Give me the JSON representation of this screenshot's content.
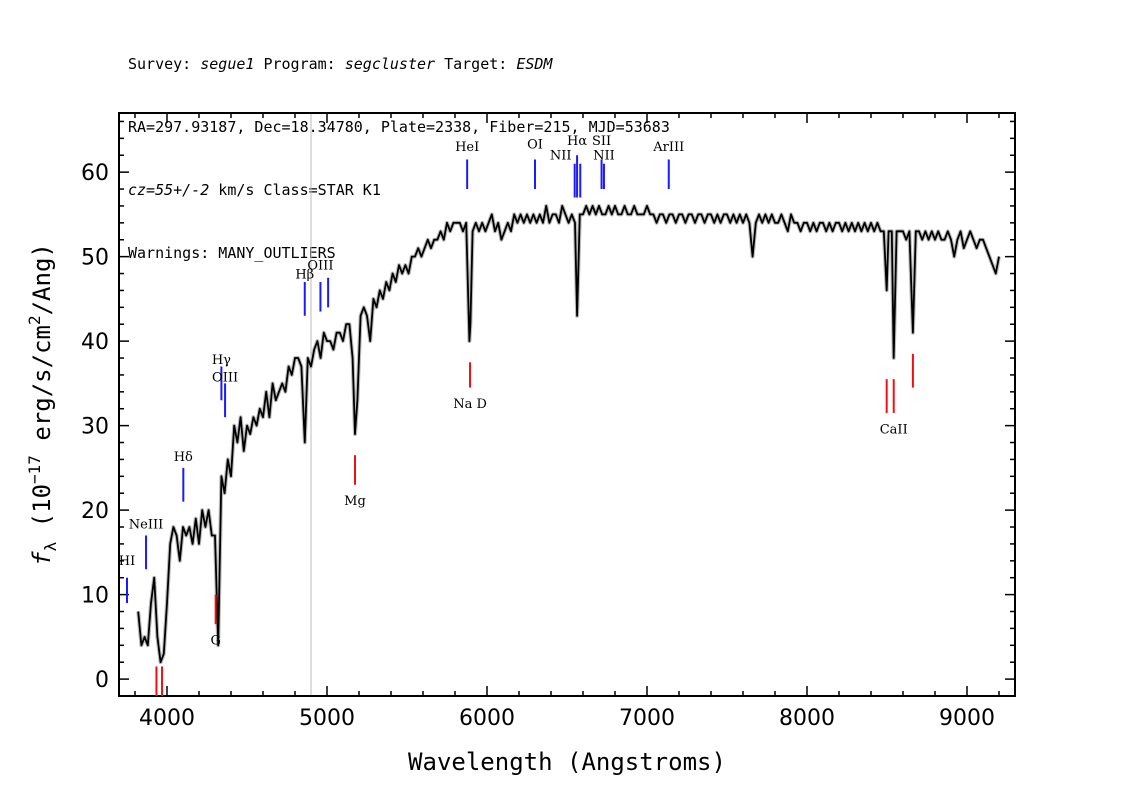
{
  "header": {
    "line1": {
      "survey_label": "Survey: ",
      "survey": "segue1",
      "program_label": " Program: ",
      "program": "segcluster",
      "target_label": " Target: ",
      "target": "ESDM"
    },
    "line2": "RA=297.93187, Dec=18.34780, Plate=2338, Fiber=215, MJD=53683",
    "line3": {
      "cz": "cz=55+/-2",
      "rest": " km/s Class=STAR K1"
    },
    "line4": "Warnings: MANY_OUTLIERS"
  },
  "chart_data": {
    "type": "line",
    "xlabel": "Wavelength (Angstroms)",
    "ylabel_prefix": "f",
    "ylabel_sub": "λ",
    "ylabel_main": " (10",
    "ylabel_exp": "−17",
    "ylabel_rest": " erg/s/cm",
    "ylabel_exp2": "2",
    "ylabel_end": "/Ang)",
    "xlim": [
      3700,
      9300
    ],
    "ylim": [
      -2,
      67
    ],
    "xticks": [
      4000,
      5000,
      6000,
      7000,
      8000,
      9000
    ],
    "yticks": [
      0,
      10,
      20,
      30,
      40,
      50,
      60
    ],
    "vline_x": 4900,
    "spectrum_color": "#000000",
    "error_color": "#bbbbbb",
    "spectrum_points": [
      [
        3820,
        8
      ],
      [
        3840,
        4
      ],
      [
        3860,
        5
      ],
      [
        3880,
        4
      ],
      [
        3900,
        9
      ],
      [
        3920,
        12
      ],
      [
        3940,
        5
      ],
      [
        3960,
        2
      ],
      [
        3980,
        3
      ],
      [
        4000,
        9
      ],
      [
        4020,
        16
      ],
      [
        4040,
        18
      ],
      [
        4060,
        17
      ],
      [
        4080,
        14
      ],
      [
        4100,
        18
      ],
      [
        4120,
        17
      ],
      [
        4140,
        18
      ],
      [
        4160,
        16
      ],
      [
        4180,
        19
      ],
      [
        4200,
        16
      ],
      [
        4220,
        20
      ],
      [
        4240,
        18
      ],
      [
        4260,
        20
      ],
      [
        4280,
        17
      ],
      [
        4300,
        17
      ],
      [
        4320,
        4
      ],
      [
        4340,
        24
      ],
      [
        4360,
        22
      ],
      [
        4380,
        26
      ],
      [
        4400,
        24
      ],
      [
        4420,
        30
      ],
      [
        4440,
        28
      ],
      [
        4460,
        31
      ],
      [
        4480,
        27
      ],
      [
        4500,
        30
      ],
      [
        4520,
        29
      ],
      [
        4540,
        31
      ],
      [
        4560,
        30
      ],
      [
        4580,
        32
      ],
      [
        4600,
        31
      ],
      [
        4620,
        34
      ],
      [
        4640,
        31
      ],
      [
        4660,
        35
      ],
      [
        4680,
        33
      ],
      [
        4700,
        34
      ],
      [
        4720,
        35
      ],
      [
        4740,
        34
      ],
      [
        4760,
        37
      ],
      [
        4780,
        36
      ],
      [
        4800,
        38
      ],
      [
        4820,
        38
      ],
      [
        4840,
        37
      ],
      [
        4861,
        28
      ],
      [
        4880,
        38
      ],
      [
        4900,
        37
      ],
      [
        4920,
        39
      ],
      [
        4940,
        40
      ],
      [
        4960,
        38
      ],
      [
        4980,
        41
      ],
      [
        5000,
        40
      ],
      [
        5020,
        40
      ],
      [
        5040,
        39
      ],
      [
        5060,
        41
      ],
      [
        5080,
        41
      ],
      [
        5100,
        40
      ],
      [
        5120,
        42
      ],
      [
        5140,
        42
      ],
      [
        5160,
        38
      ],
      [
        5175,
        29
      ],
      [
        5190,
        33
      ],
      [
        5210,
        43
      ],
      [
        5230,
        44
      ],
      [
        5250,
        43
      ],
      [
        5270,
        40
      ],
      [
        5290,
        45
      ],
      [
        5310,
        44
      ],
      [
        5330,
        46
      ],
      [
        5350,
        45
      ],
      [
        5370,
        47
      ],
      [
        5390,
        46
      ],
      [
        5410,
        48
      ],
      [
        5430,
        47
      ],
      [
        5450,
        49
      ],
      [
        5470,
        48
      ],
      [
        5490,
        49
      ],
      [
        5510,
        48
      ],
      [
        5530,
        50
      ],
      [
        5550,
        50
      ],
      [
        5570,
        51
      ],
      [
        5590,
        50
      ],
      [
        5610,
        51
      ],
      [
        5630,
        52
      ],
      [
        5650,
        51
      ],
      [
        5670,
        52
      ],
      [
        5690,
        52
      ],
      [
        5710,
        53
      ],
      [
        5730,
        52
      ],
      [
        5750,
        54
      ],
      [
        5770,
        53
      ],
      [
        5790,
        54
      ],
      [
        5810,
        54
      ],
      [
        5830,
        54
      ],
      [
        5850,
        53
      ],
      [
        5870,
        54
      ],
      [
        5890,
        40
      ],
      [
        5896,
        42
      ],
      [
        5910,
        53
      ],
      [
        5930,
        54
      ],
      [
        5950,
        53
      ],
      [
        5970,
        54
      ],
      [
        5990,
        53
      ],
      [
        6010,
        54
      ],
      [
        6030,
        55
      ],
      [
        6050,
        53
      ],
      [
        6070,
        54
      ],
      [
        6090,
        52
      ],
      [
        6110,
        53
      ],
      [
        6130,
        54
      ],
      [
        6150,
        53
      ],
      [
        6170,
        55
      ],
      [
        6190,
        54
      ],
      [
        6210,
        55
      ],
      [
        6230,
        54
      ],
      [
        6250,
        55
      ],
      [
        6270,
        54
      ],
      [
        6290,
        55
      ],
      [
        6310,
        54
      ],
      [
        6330,
        55
      ],
      [
        6350,
        54
      ],
      [
        6370,
        56
      ],
      [
        6390,
        54
      ],
      [
        6410,
        55
      ],
      [
        6430,
        55
      ],
      [
        6450,
        54
      ],
      [
        6470,
        56
      ],
      [
        6490,
        55
      ],
      [
        6510,
        54
      ],
      [
        6530,
        55
      ],
      [
        6550,
        54
      ],
      [
        6563,
        43
      ],
      [
        6580,
        55
      ],
      [
        6600,
        55
      ],
      [
        6620,
        56
      ],
      [
        6640,
        55
      ],
      [
        6660,
        56
      ],
      [
        6680,
        55
      ],
      [
        6700,
        56
      ],
      [
        6720,
        55
      ],
      [
        6740,
        55
      ],
      [
        6760,
        56
      ],
      [
        6780,
        55
      ],
      [
        6800,
        56
      ],
      [
        6820,
        55
      ],
      [
        6840,
        55
      ],
      [
        6860,
        56
      ],
      [
        6880,
        55
      ],
      [
        6900,
        55
      ],
      [
        6920,
        56
      ],
      [
        6940,
        55
      ],
      [
        6960,
        55
      ],
      [
        6980,
        55
      ],
      [
        7000,
        56
      ],
      [
        7020,
        55
      ],
      [
        7040,
        55
      ],
      [
        7060,
        54
      ],
      [
        7080,
        55
      ],
      [
        7100,
        55
      ],
      [
        7120,
        54
      ],
      [
        7140,
        55
      ],
      [
        7160,
        55
      ],
      [
        7180,
        54
      ],
      [
        7200,
        55
      ],
      [
        7220,
        55
      ],
      [
        7240,
        54
      ],
      [
        7260,
        55
      ],
      [
        7280,
        55
      ],
      [
        7300,
        54
      ],
      [
        7320,
        55
      ],
      [
        7340,
        55
      ],
      [
        7360,
        54
      ],
      [
        7380,
        55
      ],
      [
        7400,
        55
      ],
      [
        7420,
        54
      ],
      [
        7440,
        55
      ],
      [
        7460,
        54
      ],
      [
        7480,
        55
      ],
      [
        7500,
        55
      ],
      [
        7520,
        54
      ],
      [
        7540,
        55
      ],
      [
        7560,
        54
      ],
      [
        7580,
        55
      ],
      [
        7600,
        54
      ],
      [
        7620,
        55
      ],
      [
        7640,
        54
      ],
      [
        7660,
        50
      ],
      [
        7680,
        54
      ],
      [
        7700,
        55
      ],
      [
        7720,
        54
      ],
      [
        7740,
        55
      ],
      [
        7760,
        54
      ],
      [
        7780,
        55
      ],
      [
        7800,
        54
      ],
      [
        7820,
        54
      ],
      [
        7840,
        55
      ],
      [
        7860,
        54
      ],
      [
        7880,
        53
      ],
      [
        7900,
        55
      ],
      [
        7920,
        54
      ],
      [
        7940,
        54
      ],
      [
        7960,
        53
      ],
      [
        7980,
        54
      ],
      [
        8000,
        54
      ],
      [
        8020,
        53
      ],
      [
        8040,
        54
      ],
      [
        8060,
        53
      ],
      [
        8080,
        54
      ],
      [
        8100,
        54
      ],
      [
        8120,
        53
      ],
      [
        8140,
        54
      ],
      [
        8160,
        53
      ],
      [
        8180,
        54
      ],
      [
        8200,
        54
      ],
      [
        8220,
        53
      ],
      [
        8240,
        54
      ],
      [
        8260,
        53
      ],
      [
        8280,
        54
      ],
      [
        8300,
        53
      ],
      [
        8320,
        54
      ],
      [
        8340,
        53
      ],
      [
        8360,
        54
      ],
      [
        8380,
        53
      ],
      [
        8400,
        54
      ],
      [
        8420,
        53
      ],
      [
        8440,
        54
      ],
      [
        8460,
        53
      ],
      [
        8480,
        53
      ],
      [
        8498,
        46
      ],
      [
        8510,
        53
      ],
      [
        8530,
        53
      ],
      [
        8542,
        38
      ],
      [
        8560,
        53
      ],
      [
        8580,
        53
      ],
      [
        8600,
        53
      ],
      [
        8620,
        52
      ],
      [
        8640,
        53
      ],
      [
        8662,
        41
      ],
      [
        8680,
        53
      ],
      [
        8700,
        53
      ],
      [
        8720,
        52
      ],
      [
        8740,
        53
      ],
      [
        8760,
        52
      ],
      [
        8780,
        53
      ],
      [
        8800,
        52
      ],
      [
        8820,
        53
      ],
      [
        8840,
        52
      ],
      [
        8860,
        52
      ],
      [
        8880,
        53
      ],
      [
        8900,
        52
      ],
      [
        8920,
        50
      ],
      [
        8940,
        52
      ],
      [
        8960,
        53
      ],
      [
        8980,
        51
      ],
      [
        9000,
        52
      ],
      [
        9020,
        53
      ],
      [
        9040,
        52
      ],
      [
        9060,
        51
      ],
      [
        9080,
        52
      ],
      [
        9100,
        52
      ],
      [
        9120,
        51
      ],
      [
        9140,
        50
      ],
      [
        9160,
        49
      ],
      [
        9180,
        48
      ],
      [
        9200,
        50
      ]
    ],
    "emission_lines": [
      {
        "label": "HI",
        "x": 3750,
        "y0": 9,
        "y1": 12,
        "color": "#1a1aff",
        "label_y": 13.5,
        "dx": 0
      },
      {
        "label": "NeIII",
        "x": 3869,
        "y0": 13,
        "y1": 17,
        "color": "#1a1aff",
        "label_y": 17.8,
        "dx": 0
      },
      {
        "label": "Hδ",
        "x": 4102,
        "y0": 21,
        "y1": 25,
        "color": "#1a1aff",
        "label_y": 25.8,
        "dx": 0
      },
      {
        "label": "Hγ",
        "x": 4340,
        "y0": 33,
        "y1": 37,
        "color": "#1a1aff",
        "label_y": 37.3,
        "dx": 0
      },
      {
        "label": "OIII",
        "x": 4363,
        "y0": 31,
        "y1": 35,
        "color": "#1a1aff",
        "label_y": 35.2,
        "dx": 0
      },
      {
        "label": "Hβ",
        "x": 4861,
        "y0": 43,
        "y1": 47,
        "color": "#1a1aff",
        "label_y": 47.4,
        "dx": 0
      },
      {
        "label": "OIII",
        "x": 4959,
        "y0": 43.5,
        "y1": 47,
        "color": "#1a1aff",
        "label_y": 48.5,
        "dx": 0
      },
      {
        "label": "",
        "x": 5007,
        "y0": 44,
        "y1": 47.5,
        "color": "#1a1aff",
        "label_y": 48.5,
        "dx": 0
      },
      {
        "label": "HeI",
        "x": 5876,
        "y0": 58,
        "y1": 61.5,
        "color": "#1a1aff",
        "label_y": 62.5,
        "dx": 0
      },
      {
        "label": "OI",
        "x": 6300,
        "y0": 58,
        "y1": 61.5,
        "color": "#1a1aff",
        "label_y": 62.8,
        "dx": 0
      },
      {
        "label": "NII",
        "x": 6548,
        "y0": 57,
        "y1": 61,
        "color": "#1a1aff",
        "label_y": 61.5,
        "dx": -14
      },
      {
        "label": "Hα",
        "x": 6563,
        "y0": 57,
        "y1": 62,
        "color": "#1a1aff",
        "label_y": 63.2,
        "dx": 0
      },
      {
        "label": "",
        "x": 6583,
        "y0": 57,
        "y1": 61,
        "color": "#1a1aff",
        "label_y": 61.5,
        "dx": 0
      },
      {
        "label": "SII",
        "x": 6716,
        "y0": 58,
        "y1": 61.5,
        "color": "#1a1aff",
        "label_y": 63.2,
        "dx": 0
      },
      {
        "label": "NII",
        "x": 6731,
        "y0": 58,
        "y1": 61,
        "color": "#1a1aff",
        "label_y": 61.5,
        "dx": 0
      },
      {
        "label": "ArIII",
        "x": 7136,
        "y0": 58,
        "y1": 61.5,
        "color": "#1a1aff",
        "label_y": 62.5,
        "dx": 0
      }
    ],
    "absorption_lines": [
      {
        "label": "G",
        "x": 4304,
        "y0": 6.5,
        "y1": 10,
        "color": "#ee1111",
        "label_y": 5.5
      },
      {
        "label": "Mg",
        "x": 5175,
        "y0": 23,
        "y1": 26.5,
        "color": "#ee1111",
        "label_y": 22
      },
      {
        "label": "Na D",
        "x": 5894,
        "y0": 34.5,
        "y1": 37.5,
        "color": "#ee1111",
        "label_y": 33.5
      },
      {
        "label": "CaII",
        "x": 8542,
        "y0": 31.5,
        "y1": 35.5,
        "color": "#ee1111",
        "label_y": 30.5
      }
    ],
    "absorption_ticks_unlabeled": [
      {
        "x": 3934,
        "y0": -2,
        "y1": 1.5,
        "color": "#ee1111"
      },
      {
        "x": 3969,
        "y0": -2,
        "y1": 1.5,
        "color": "#ee1111"
      },
      {
        "x": 8498,
        "y0": 31.5,
        "y1": 35.5,
        "color": "#ee1111"
      },
      {
        "x": 8662,
        "y0": 34.5,
        "y1": 38.5,
        "color": "#ee1111"
      }
    ]
  }
}
